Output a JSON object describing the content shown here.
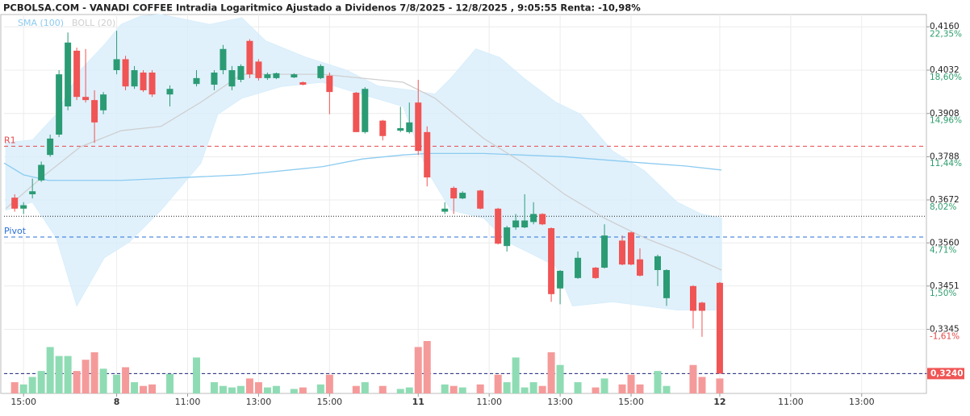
{
  "chart_data": {
    "type": "candlestick",
    "title": "PCBOLSA.COM - VANADI COFFEE Intradia Logaritmico Ajustado a Dividenos 7/8/2025 - 12/8/2025 , 9:05:55 Renta: -10,98%",
    "log_scale": true,
    "grid": true,
    "xlim": [
      -12.7,
      91.3
    ],
    "ylim": [
      0.3194,
      0.4197
    ],
    "xticks": [
      {
        "value": -10.5,
        "label": "15:00"
      },
      {
        "value": 0,
        "label": "8"
      },
      {
        "value": 8,
        "label": "11:00"
      },
      {
        "value": 16,
        "label": "13:00"
      },
      {
        "value": 24,
        "label": "15:00"
      },
      {
        "value": 34,
        "label": "11"
      },
      {
        "value": 42,
        "label": "11:00"
      },
      {
        "value": 50,
        "label": "13:00"
      },
      {
        "value": 58,
        "label": "15:00"
      },
      {
        "value": 68,
        "label": "12"
      },
      {
        "value": 76,
        "label": "11:00"
      },
      {
        "value": 84,
        "label": "13:00"
      }
    ],
    "yticks": [
      {
        "value": 0.416,
        "label": "0,4160"
      },
      {
        "value": 0.4032,
        "label": "0,4032"
      },
      {
        "value": 0.3908,
        "label": "0,3908"
      },
      {
        "value": 0.3788,
        "label": "0,3788"
      },
      {
        "value": 0.3672,
        "label": "0,3672"
      },
      {
        "value": 0.356,
        "label": "0,3560"
      },
      {
        "value": 0.3451,
        "label": "0,3451"
      },
      {
        "value": 0.3345,
        "label": "0,3345"
      },
      {
        "value": 0.324,
        "label": "0,3240"
      }
    ],
    "y2lim": [
      -5.56,
      24.1
    ],
    "y2ticks": [
      {
        "value": 22.35,
        "label": "22,35%"
      },
      {
        "value": 18.6,
        "label": "18,60%"
      },
      {
        "value": 14.96,
        "label": "14,96%"
      },
      {
        "value": 11.44,
        "label": "11,44%"
      },
      {
        "value": 8.02,
        "label": "8,02%"
      },
      {
        "value": 4.71,
        "label": "4,71%"
      },
      {
        "value": 1.5,
        "label": "1,50%"
      },
      {
        "value": -1.61,
        "label": "-1,61%"
      }
    ],
    "up_color": "#2b9b74",
    "down_color": "#f05454",
    "volume_up_color": "#8fdcb4",
    "volume_down_color": "#f59a9a",
    "candles": {
      "x": [
        -11.5,
        -10.5,
        -9.5,
        -8.5,
        -7.5,
        -6.5,
        -5.5,
        -4.5,
        -3.5,
        -2.5,
        -1.5,
        0,
        1,
        2,
        3,
        4,
        6,
        9,
        11,
        12,
        13,
        14,
        15,
        16,
        17,
        18,
        20,
        21,
        23,
        24,
        27,
        28,
        30,
        32,
        33,
        34,
        35,
        37,
        38,
        39,
        41,
        43,
        44,
        45,
        46,
        47,
        48,
        49,
        50,
        52,
        54,
        55,
        57,
        58,
        59,
        61,
        62,
        65,
        66,
        68
      ],
      "open": [
        0.3678,
        0.3649,
        0.3687,
        0.3724,
        0.3793,
        0.3849,
        0.3928,
        0.4089,
        0.3955,
        0.3946,
        0.3917,
        0.4032,
        0.4064,
        0.3985,
        0.4025,
        0.4025,
        0.3962,
        0.3992,
        0.399,
        0.4032,
        0.3985,
        0.4004,
        0.4118,
        0.4057,
        0.4009,
        0.4009,
        0.4011,
        0.3997,
        0.4009,
        0.4016,
        0.3967,
        0.3856,
        0.3888,
        0.386,
        0.3856,
        0.3939,
        0.3856,
        0.3641,
        0.3704,
        0.3676,
        0.3697,
        0.3649,
        0.3552,
        0.36,
        0.36,
        0.3614,
        0.3635,
        0.3598,
        0.3445,
        0.3471,
        0.3497,
        0.3497,
        0.3566,
        0.3587,
        0.3518,
        0.3491,
        0.3421,
        0.3451,
        0.341,
        0.3459
      ],
      "high": [
        0.3687,
        0.3666,
        0.3729,
        0.3775,
        0.3849,
        0.4032,
        0.4143,
        0.4098,
        0.4094,
        0.3974,
        0.3969,
        0.4148,
        0.4074,
        0.4044,
        0.4032,
        0.4032,
        0.3988,
        0.4032,
        0.4032,
        0.4106,
        0.4044,
        0.4049,
        0.4123,
        0.4064,
        0.4025,
        0.4025,
        0.4023,
        0.3999,
        0.4049,
        0.4025,
        0.3969,
        0.3983,
        0.389,
        0.3927,
        0.3939,
        0.4004,
        0.3872,
        0.3666,
        0.3708,
        0.3695,
        0.3699,
        0.3651,
        0.3604,
        0.3635,
        0.3687,
        0.3666,
        0.3637,
        0.36,
        0.3491,
        0.3538,
        0.3499,
        0.3608,
        0.3579,
        0.3589,
        0.3546,
        0.353,
        0.3493,
        0.3453,
        0.3412,
        0.3461
      ],
      "low": [
        0.3641,
        0.3635,
        0.3676,
        0.372,
        0.3788,
        0.3842,
        0.3917,
        0.3946,
        0.3939,
        0.3826,
        0.3906,
        0.402,
        0.3974,
        0.3978,
        0.3969,
        0.3955,
        0.3928,
        0.3985,
        0.3974,
        0.402,
        0.3974,
        0.3997,
        0.4009,
        0.4002,
        0.4004,
        0.4006,
        0.4009,
        0.3988,
        0.4006,
        0.3906,
        0.3856,
        0.3852,
        0.3833,
        0.3856,
        0.3852,
        0.3793,
        0.3708,
        0.3635,
        0.3635,
        0.3674,
        0.3647,
        0.3556,
        0.3538,
        0.3594,
        0.3598,
        0.3608,
        0.3606,
        0.3412,
        0.3406,
        0.3469,
        0.3469,
        0.3495,
        0.3503,
        0.3503,
        0.3475,
        0.3451,
        0.3402,
        0.3347,
        0.3327,
        0.324
      ],
      "close": [
        0.3649,
        0.3658,
        0.3695,
        0.3766,
        0.3838,
        0.402,
        0.4113,
        0.3955,
        0.3946,
        0.3883,
        0.3962,
        0.4064,
        0.3985,
        0.4032,
        0.3974,
        0.3962,
        0.3978,
        0.4009,
        0.4025,
        0.4094,
        0.4032,
        0.4044,
        0.402,
        0.4009,
        0.402,
        0.4023,
        0.402,
        0.399,
        0.4044,
        0.3969,
        0.3856,
        0.3978,
        0.3845,
        0.3867,
        0.3883,
        0.3804,
        0.3732,
        0.3649,
        0.3676,
        0.3691,
        0.3649,
        0.3558,
        0.36,
        0.3618,
        0.3618,
        0.3635,
        0.3608,
        0.3431,
        0.3489,
        0.3522,
        0.3471,
        0.3579,
        0.3505,
        0.3505,
        0.3477,
        0.3526,
        0.3491,
        0.339,
        0.339,
        0.324
      ],
      "volume": [
        15,
        12,
        22,
        30,
        62,
        50,
        50,
        30,
        45,
        55,
        33,
        25,
        35,
        15,
        10,
        12,
        26,
        48,
        15,
        10,
        8,
        10,
        20,
        15,
        8,
        10,
        6,
        8,
        12,
        25,
        10,
        15,
        10,
        6,
        8,
        62,
        70,
        12,
        10,
        8,
        12,
        25,
        15,
        48,
        8,
        15,
        10,
        55,
        38,
        15,
        8,
        20,
        12,
        25,
        12,
        30,
        10,
        38,
        22,
        20
      ]
    },
    "series": [
      {
        "name": "SMA (100)",
        "color": "#8ccbf0",
        "x": [
          -12.7,
          -10.5,
          -7.7,
          -4.1,
          0.5,
          5,
          14.1,
          23.2,
          27.7,
          32.3,
          35,
          41.4,
          50.5,
          59.5,
          64.1,
          68.2
        ],
        "values": [
          0.3771,
          0.3739,
          0.3724,
          0.3724,
          0.3724,
          0.3729,
          0.3739,
          0.3761,
          0.3782,
          0.3793,
          0.3797,
          0.3797,
          0.3788,
          0.3771,
          0.3763,
          0.3752
        ]
      },
      {
        "name": "BOLL (20)",
        "color": "#cfcfcf",
        "x": [
          -12.5,
          -8.6,
          -4.1,
          0.5,
          5,
          9.5,
          14.1,
          23.2,
          32.3,
          35.9,
          41.4,
          45.9,
          50.5,
          55,
          59.5,
          64.1,
          68.2
        ],
        "values": [
          0.3649,
          0.3729,
          0.3815,
          0.386,
          0.3872,
          0.394,
          0.402,
          0.402,
          0.3997,
          0.3951,
          0.3838,
          0.377,
          0.3687,
          0.3624,
          0.3573,
          0.3532,
          0.3491
        ]
      }
    ],
    "band": {
      "color": "#d8eefb",
      "upper": {
        "x": [
          -12.5,
          -9.5,
          -6.8,
          -4.1,
          -1.4,
          0.5,
          2.7,
          5,
          10.5,
          14.1,
          16.8,
          21.4,
          25.9,
          29.5,
          33.2,
          35.9,
          37.7,
          40.5,
          43.2,
          45.9,
          49.5,
          52.3,
          55.9,
          59.5,
          63.2,
          65.9,
          68.2
        ],
        "values": [
          0.3827,
          0.3834,
          0.3906,
          0.4032,
          0.4106,
          0.4167,
          0.4192,
          0.4197,
          0.4167,
          0.4187,
          0.4118,
          0.4069,
          0.4032,
          0.3986,
          0.3974,
          0.3963,
          0.4009,
          0.4094,
          0.4069,
          0.4009,
          0.394,
          0.3906,
          0.3804,
          0.375,
          0.3666,
          0.3635,
          0.3624
        ]
      },
      "lower": {
        "x": [
          -12.5,
          -9.5,
          -6.8,
          -4.5,
          -1.4,
          1.4,
          5,
          9.5,
          11.4,
          14.1,
          18.6,
          23.2,
          27.7,
          32.3,
          35,
          37.7,
          41.4,
          44.1,
          46.8,
          49.5,
          51.4,
          55.9,
          59.5,
          63.2,
          68.2
        ],
        "values": [
          0.3645,
          0.3666,
          0.3573,
          0.3402,
          0.3522,
          0.3562,
          0.3645,
          0.3771,
          0.3906,
          0.3951,
          0.3985,
          0.3997,
          0.3962,
          0.3928,
          0.375,
          0.3645,
          0.3624,
          0.3562,
          0.3532,
          0.3501,
          0.3402,
          0.3412,
          0.3402,
          0.3392,
          0.3392
        ]
      }
    },
    "levels": [
      {
        "name": "R1",
        "value": 0.3817,
        "color": "#e8474c",
        "dash": "5,4"
      },
      {
        "name": "Pivot",
        "value": 0.3575,
        "color": "#2a6fd6",
        "dash": "5,4"
      },
      {
        "value": 0.3629,
        "color": "#222222",
        "dash": "1,2"
      },
      {
        "value": 0.324,
        "color": "#1a237e",
        "dash": "4,3"
      }
    ],
    "last_price": {
      "value": 0.324,
      "label": "0,3240"
    }
  }
}
